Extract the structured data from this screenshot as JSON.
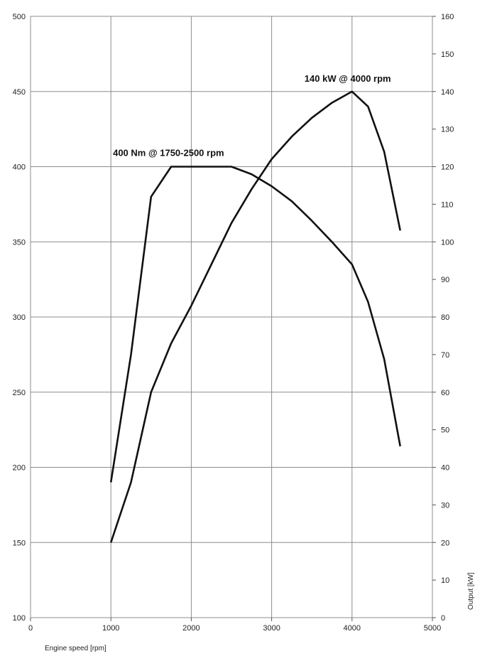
{
  "chart_data": {
    "type": "line",
    "xlabel": "Engine speed [rpm]",
    "ylabel_right": "Output [kW]",
    "ylabel_left": "",
    "xlim": [
      0,
      5000
    ],
    "ylim_left": [
      100,
      500
    ],
    "ylim_right": [
      0,
      160
    ],
    "x_ticks": [
      "0",
      "1000",
      "2000",
      "3000",
      "4000",
      "5000"
    ],
    "y_left_ticks": [
      "100",
      "150",
      "200",
      "250",
      "300",
      "350",
      "400",
      "450",
      "500"
    ],
    "y_right_ticks": [
      "0",
      "10",
      "20",
      "30",
      "40",
      "50",
      "60",
      "70",
      "80",
      "90",
      "100",
      "110",
      "120",
      "130",
      "140",
      "150",
      "160"
    ],
    "grid": true,
    "series": [
      {
        "name": "",
        "axis": "left",
        "x": [
          1000,
          1250,
          1500,
          1750,
          2000,
          2500,
          2750,
          3000,
          3250,
          3500,
          3750,
          4000,
          4200,
          4400,
          4600
        ],
        "y": [
          190,
          275,
          380,
          400,
          400,
          400,
          395,
          387,
          377,
          364,
          350,
          335,
          310,
          272,
          214
        ]
      },
      {
        "name": "",
        "axis": "right",
        "x": [
          1000,
          1250,
          1500,
          1750,
          2000,
          2250,
          2500,
          2750,
          3000,
          3250,
          3500,
          3750,
          4000,
          4200,
          4400,
          4600
        ],
        "y": [
          20,
          36,
          60,
          73,
          83,
          94,
          105,
          114,
          122,
          128,
          133,
          137,
          140,
          136,
          124,
          103
        ]
      }
    ],
    "annotations": [
      {
        "text": "400 Nm @ 1750-2500 rpm",
        "x": 1750,
        "y": 400,
        "axis": "left"
      },
      {
        "text": "140 kW @ 4000 rpm",
        "x": 4000,
        "y": 140,
        "axis": "right"
      }
    ]
  }
}
